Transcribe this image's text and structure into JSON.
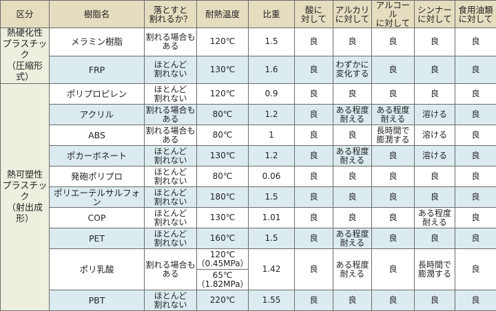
{
  "headers": [
    "区分",
    "樹脂名",
    "落とすと\n割れるか？",
    "耐熱温度",
    "比重",
    "酸に\n対して",
    "アルカリ\nに対して",
    "アルコール\nに対して",
    "シンナー\nに対して",
    "食用油類\nに対して"
  ],
  "groups": [
    {
      "label": "熱硬化性\nプラスチック\n（圧縮形式）",
      "span": 2
    },
    {
      "label": "熱可塑性\nプラスチック\n（射出成形）",
      "span": 10
    }
  ],
  "rows": [
    {
      "name": "メラミン樹脂",
      "drop": "割れる場合も\nある",
      "heat": [
        "120℃"
      ],
      "gravity": "1.5",
      "acid": "良",
      "alkali": "良",
      "alcohol": "良",
      "thinner": "良",
      "oil": "良"
    },
    {
      "name": "FRP",
      "drop": "ほとんど\n割れない",
      "heat": [
        "130℃"
      ],
      "gravity": "1.6",
      "acid": "良",
      "alkali": "わずかに\n変化する",
      "alcohol": "良",
      "thinner": "良",
      "oil": "良"
    },
    {
      "name": "ポリプロピレン",
      "drop": "ほとんど\n割れない",
      "heat": [
        "120℃"
      ],
      "gravity": "0.9",
      "acid": "良",
      "alkali": "良",
      "alcohol": "良",
      "thinner": "良",
      "oil": "良"
    },
    {
      "name": "アクリル",
      "drop": "割れる場合も\nある",
      "heat": [
        "80℃"
      ],
      "gravity": "1.2",
      "acid": "良",
      "alkali": "ある程度\n耐える",
      "alcohol": "ある程度\n耐える",
      "thinner": "溶ける",
      "oil": "良"
    },
    {
      "name": "ABS",
      "drop": "割れる場合も\nある",
      "heat": [
        "80℃"
      ],
      "gravity": "1",
      "acid": "良",
      "alkali": "良",
      "alcohol": "長時間で\n膨潤する",
      "thinner": "溶ける",
      "oil": "良"
    },
    {
      "name": "ポカーボネート",
      "drop": "ほとんど\n割れない",
      "heat": [
        "130℃"
      ],
      "gravity": "1.2",
      "acid": "良",
      "alkali": "ある程度\n耐える",
      "alcohol": "良",
      "thinner": "溶ける",
      "oil": "良"
    },
    {
      "name": "発砲ポリプロ",
      "drop": "ほとんど\n割れない",
      "heat": [
        "80℃"
      ],
      "gravity": "0.06",
      "acid": "良",
      "alkali": "良",
      "alcohol": "良",
      "thinner": "良",
      "oil": "良"
    },
    {
      "name": "ポリエーテルサルフォン",
      "drop": "ほとんど\n割れない",
      "heat": [
        "180℃"
      ],
      "gravity": "1.5",
      "acid": "良",
      "alkali": "良",
      "alcohol": "良",
      "thinner": "良",
      "oil": "良"
    },
    {
      "name": "COP",
      "drop": "ほとんど\n割れない",
      "heat": [
        "130℃"
      ],
      "gravity": "1.01",
      "acid": "良",
      "alkali": "良",
      "alcohol": "良",
      "thinner": "ある程度\n耐える",
      "oil": "良"
    },
    {
      "name": "PET",
      "drop": "ほとんど\n割れない",
      "heat": [
        "160℃"
      ],
      "gravity": "1.5",
      "acid": "良",
      "alkali": "ある程度\n耐える",
      "alcohol": "良",
      "thinner": "良",
      "oil": "良"
    },
    {
      "name": "ポリ乳酸",
      "drop": "割れる場合も\nある",
      "heat": [
        "120℃\n（0.45MPa）",
        "65℃\n（1.82MPa）"
      ],
      "gravity": "1.42",
      "acid": "良",
      "alkali": "ある程度\n耐える",
      "alcohol": "良",
      "thinner": "長時間で\n膨潤する",
      "oil": "良"
    },
    {
      "name": "PBT",
      "drop": "ほとんど\n割れない",
      "heat": [
        "220℃"
      ],
      "gravity": "1.55",
      "acid": "良",
      "alkali": "良",
      "alcohol": "良",
      "thinner": "良",
      "oil": "良"
    }
  ],
  "colors": {
    "header_bg": "#e4ddbf",
    "row_alt_bg": "#dbebf0",
    "group_bg": "#eef0df",
    "border": "#6a6a6a"
  }
}
